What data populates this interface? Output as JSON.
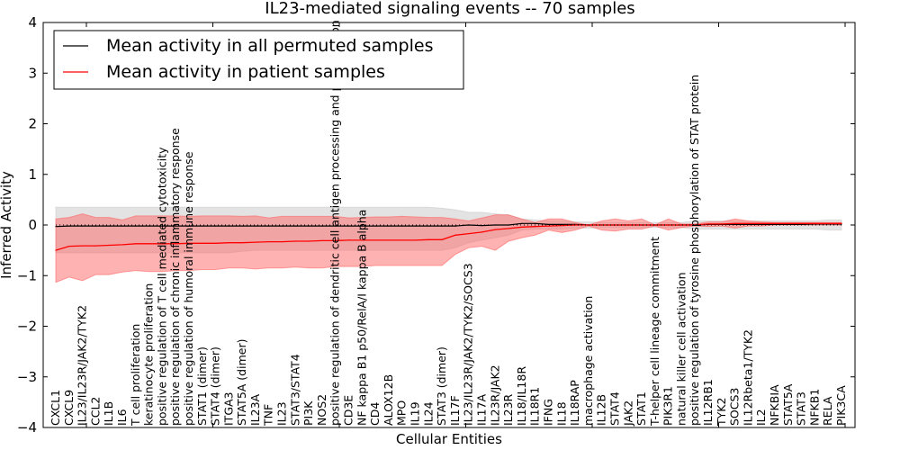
{
  "chart_data": {
    "type": "line",
    "title": "IL23-mediated signaling events -- 70 samples",
    "xlabel": "Cellular Entities",
    "ylabel": "Inferred Activity",
    "ylim": [
      -4,
      4
    ],
    "yticks": [
      "4",
      "3",
      "2",
      "1",
      "0",
      "−1",
      "−2",
      "−3",
      "−4"
    ],
    "ytick_values": [
      4,
      3,
      2,
      1,
      0,
      -1,
      -2,
      -3,
      -4
    ],
    "grid": false,
    "legend": {
      "placement": "top-left",
      "entries": [
        {
          "label": "Mean activity in all permuted samples",
          "color": "#000000"
        },
        {
          "label": "Mean activity in patient samples",
          "color": "#ff0000"
        }
      ]
    },
    "colors": {
      "permuted_line": "#000000",
      "permuted_band": "#cccccc",
      "patient_line": "#ff0000",
      "patient_band": "#ff6666"
    },
    "categories": [
      "CXCL1",
      "CXCL9",
      "IL23/IL23R/JAK2/TYK2",
      "CCL2",
      "IL1B",
      "IL6",
      "T cell proliferation",
      "keratinocyte proliferation",
      "positive regulation of T cell mediated cytotoxicity",
      "positive regulation of chronic inflammatory response",
      "positive regulation of humoral immune response",
      "STAT1 (dimer)",
      "STAT4 (dimer)",
      "ITGA3",
      "STAT5A (dimer)",
      "IL23A",
      "TNF",
      "IL23",
      "STAT3/STAT4",
      "PI3K",
      "NOS2",
      "positive regulation of dendritic cell antigen processing and presentation",
      "CD3E",
      "NF kappa B1 p50/RelA/I kappa B alpha",
      "CD4",
      "ALOX12B",
      "MPO",
      "IL19",
      "IL24",
      "STAT3 (dimer)",
      "IL17F",
      "IL23/IL23R/JAK2/TYK2/SOCS3",
      "IL17A",
      "IL23R/JAK2",
      "IL23R",
      "IL18/IL18R",
      "IL18R1",
      "IFNG",
      "IL18",
      "IL18RAP",
      "macrophage activation",
      "IL12B",
      "STAT4",
      "JAK2",
      "STAT1",
      "T-helper cell lineage commitment",
      "PIK3R1",
      "natural killer cell activation",
      "positive regulation of tyrosine phosphorylation of STAT protein",
      "IL12RB1",
      "TYK2",
      "SOCS3",
      "IL12Rbeta1/TYK2",
      "IL2",
      "NFKBIA",
      "STAT5A",
      "STAT3",
      "NFKB1",
      "RELA",
      "PIK3CA"
    ],
    "series": [
      {
        "name": "Mean activity in all permuted samples",
        "values": [
          -0.03,
          -0.02,
          -0.02,
          -0.02,
          -0.02,
          -0.02,
          -0.02,
          -0.02,
          -0.02,
          -0.02,
          -0.02,
          -0.02,
          -0.02,
          -0.02,
          -0.02,
          -0.02,
          -0.02,
          -0.02,
          -0.02,
          -0.02,
          -0.02,
          -0.02,
          -0.02,
          -0.02,
          -0.02,
          -0.02,
          -0.02,
          -0.02,
          -0.02,
          -0.02,
          -0.02,
          0.0,
          -0.01,
          0.0,
          0.0,
          0.03,
          0.03,
          0.01,
          0.01,
          0.01,
          0.0,
          0.0,
          0.0,
          0.0,
          0.0,
          0.0,
          0.0,
          0.0,
          0.0,
          0.01,
          0.01,
          0.01,
          0.01,
          0.01,
          0.01,
          0.01,
          0.01,
          0.02,
          0.02,
          0.02
        ],
        "lower": [
          -0.55,
          -0.55,
          -0.55,
          -0.55,
          -0.55,
          -0.55,
          -0.55,
          -0.55,
          -0.55,
          -0.55,
          -0.55,
          -0.55,
          -0.55,
          -0.55,
          -0.52,
          -0.5,
          -0.5,
          -0.5,
          -0.5,
          -0.5,
          -0.5,
          -0.5,
          -0.5,
          -0.5,
          -0.5,
          -0.5,
          -0.5,
          -0.5,
          -0.5,
          -0.5,
          -0.45,
          -0.35,
          -0.3,
          -0.25,
          -0.2,
          -0.1,
          -0.08,
          -0.08,
          -0.08,
          -0.06,
          -0.06,
          -0.05,
          -0.05,
          -0.05,
          -0.05,
          -0.05,
          -0.05,
          -0.05,
          -0.08,
          -0.08,
          -0.08,
          -0.08,
          -0.08,
          -0.08,
          -0.08,
          -0.08,
          -0.08,
          -0.08,
          -0.1,
          -0.1
        ],
        "upper": [
          0.35,
          0.35,
          0.35,
          0.35,
          0.35,
          0.35,
          0.35,
          0.35,
          0.35,
          0.35,
          0.35,
          0.35,
          0.35,
          0.35,
          0.35,
          0.35,
          0.35,
          0.35,
          0.35,
          0.35,
          0.35,
          0.35,
          0.35,
          0.35,
          0.35,
          0.35,
          0.35,
          0.35,
          0.35,
          0.33,
          0.3,
          0.25,
          0.25,
          0.22,
          0.2,
          0.12,
          0.1,
          0.08,
          0.08,
          0.06,
          0.06,
          0.05,
          0.05,
          0.05,
          0.05,
          0.05,
          0.05,
          0.05,
          0.08,
          0.08,
          0.08,
          0.08,
          0.08,
          0.08,
          0.08,
          0.08,
          0.08,
          0.08,
          0.1,
          0.1
        ]
      },
      {
        "name": "Mean activity in patient samples",
        "values": [
          -0.5,
          -0.42,
          -0.41,
          -0.41,
          -0.4,
          -0.39,
          -0.37,
          -0.37,
          -0.37,
          -0.37,
          -0.36,
          -0.36,
          -0.36,
          -0.35,
          -0.35,
          -0.34,
          -0.33,
          -0.33,
          -0.32,
          -0.32,
          -0.31,
          -0.31,
          -0.3,
          -0.3,
          -0.3,
          -0.3,
          -0.3,
          -0.3,
          -0.29,
          -0.29,
          -0.2,
          -0.17,
          -0.14,
          -0.09,
          -0.07,
          -0.04,
          -0.03,
          -0.02,
          -0.01,
          0.0,
          0.0,
          0.0,
          0.0,
          0.0,
          0.0,
          0.0,
          0.0,
          0.0,
          0.0,
          0.02,
          0.02,
          0.03,
          0.03,
          0.03,
          0.03,
          0.03,
          0.03,
          0.03,
          0.03,
          0.03
        ],
        "lower": [
          -1.13,
          -1.03,
          -1.1,
          -0.98,
          -0.98,
          -0.93,
          -0.9,
          -0.92,
          -0.92,
          -0.9,
          -0.9,
          -0.88,
          -0.88,
          -0.85,
          -0.85,
          -0.87,
          -0.85,
          -0.85,
          -0.83,
          -0.85,
          -0.85,
          -0.82,
          -0.82,
          -0.82,
          -0.8,
          -0.8,
          -0.8,
          -0.8,
          -0.8,
          -0.8,
          -0.58,
          -0.45,
          -0.42,
          -0.5,
          -0.32,
          -0.25,
          -0.2,
          -0.1,
          -0.15,
          -0.1,
          -0.02,
          -0.1,
          -0.12,
          -0.08,
          -0.08,
          -0.02,
          -0.1,
          -0.05,
          -0.02,
          -0.03,
          -0.02,
          -0.06,
          -0.02,
          -0.02,
          0.0,
          0.0,
          0.0,
          0.0,
          0.0,
          0.0
        ],
        "upper": [
          0.12,
          0.15,
          0.22,
          0.15,
          0.15,
          0.1,
          0.18,
          0.18,
          0.18,
          0.18,
          0.17,
          0.18,
          0.18,
          0.18,
          0.17,
          0.18,
          0.14,
          0.17,
          0.17,
          0.17,
          0.17,
          0.17,
          0.14,
          0.15,
          0.16,
          0.16,
          0.17,
          0.16,
          0.15,
          0.15,
          0.12,
          0.08,
          0.14,
          0.2,
          0.2,
          0.12,
          0.05,
          0.12,
          0.12,
          0.05,
          0.0,
          0.08,
          0.12,
          0.08,
          0.12,
          0.0,
          0.12,
          0.02,
          0.02,
          0.06,
          0.06,
          0.12,
          0.08,
          0.06,
          0.05,
          0.05,
          0.05,
          0.05,
          0.05,
          0.05
        ]
      }
    ]
  }
}
